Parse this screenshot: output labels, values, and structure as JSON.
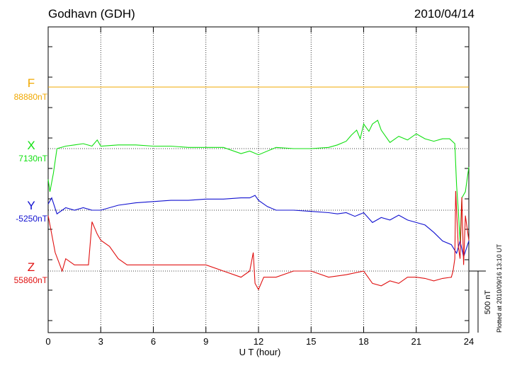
{
  "header": {
    "station": "Godhavn (GDH)",
    "date": "2010/04/14"
  },
  "footer": {
    "plotted": "Plotted at 2010/09/16 13:10 UT"
  },
  "scale_bar": {
    "label": "500 nT",
    "value_nT": 500
  },
  "colors": {
    "F": "#f0a800",
    "X": "#10e010",
    "Y": "#1010d0",
    "Z": "#e01010"
  },
  "chart_data": {
    "type": "line",
    "title": "Godhavn (GDH)",
    "xlabel": "U T (hour)",
    "ylabel": "",
    "xlim": [
      0,
      24
    ],
    "x_ticks": [
      0,
      3,
      6,
      9,
      12,
      15,
      18,
      21,
      24
    ],
    "x_tick_labels": [
      "0",
      "3",
      "6",
      "9",
      "12",
      "15",
      "18",
      "21",
      "24"
    ],
    "grid": true,
    "units": "nT (deviation from component baseline)",
    "series": [
      {
        "name": "F",
        "baseline_label": "88880nT",
        "color": "#f0a800",
        "x": [
          0,
          24
        ],
        "values": [
          0,
          0
        ]
      },
      {
        "name": "X",
        "baseline_label": "7130nT",
        "color": "#10e010",
        "x": [
          0,
          0.1,
          0.3,
          0.5,
          1.0,
          1.5,
          2.0,
          2.5,
          2.8,
          3.0,
          4.0,
          5.0,
          6.0,
          7.0,
          8.0,
          9.0,
          10.0,
          11.0,
          11.5,
          12.0,
          13.0,
          14.0,
          15.0,
          16.0,
          16.5,
          17.0,
          17.3,
          17.6,
          17.8,
          18.0,
          18.3,
          18.5,
          18.8,
          19.0,
          19.5,
          20.0,
          20.5,
          21.0,
          21.5,
          22.0,
          22.5,
          22.9,
          23.2,
          23.3,
          23.4,
          23.5,
          23.6,
          23.8,
          24.0
        ],
        "values": [
          -250,
          -350,
          -200,
          0,
          20,
          30,
          40,
          20,
          70,
          20,
          30,
          30,
          20,
          20,
          10,
          10,
          10,
          -40,
          -20,
          -50,
          10,
          0,
          0,
          10,
          30,
          60,
          110,
          150,
          80,
          200,
          140,
          200,
          230,
          150,
          50,
          100,
          70,
          120,
          80,
          60,
          80,
          80,
          40,
          -300,
          -500,
          -750,
          -400,
          -350,
          -150
        ]
      },
      {
        "name": "Y",
        "baseline_label": "-5250nT",
        "color": "#1010d0",
        "x": [
          0,
          0.2,
          0.5,
          1.0,
          1.5,
          2.0,
          2.5,
          3.0,
          4.0,
          5.0,
          6.0,
          7.0,
          8.0,
          9.0,
          10.0,
          11.0,
          11.5,
          11.8,
          12.0,
          12.5,
          13.0,
          14.0,
          15.0,
          16.0,
          16.5,
          17.0,
          17.5,
          18.0,
          18.5,
          19.0,
          19.5,
          20.0,
          20.5,
          21.0,
          21.5,
          22.0,
          22.5,
          23.0,
          23.3,
          23.5,
          23.7,
          24.0
        ],
        "values": [
          50,
          100,
          -30,
          20,
          0,
          20,
          0,
          0,
          40,
          60,
          70,
          80,
          80,
          90,
          90,
          100,
          100,
          120,
          80,
          30,
          0,
          0,
          -10,
          -20,
          -30,
          -20,
          -50,
          -20,
          -100,
          -60,
          -80,
          -40,
          -80,
          -100,
          -120,
          -180,
          -250,
          -280,
          -350,
          -250,
          -380,
          -250
        ]
      },
      {
        "name": "Z",
        "baseline_label": "55860nT",
        "color": "#e01010",
        "x": [
          0,
          0.2,
          0.4,
          0.8,
          1.0,
          1.5,
          2.0,
          2.3,
          2.5,
          2.8,
          3.0,
          3.5,
          4.0,
          4.5,
          5.0,
          6.0,
          7.0,
          8.0,
          9.0,
          10.0,
          11.0,
          11.5,
          11.7,
          11.8,
          12.0,
          12.3,
          13.0,
          14.0,
          15.0,
          16.0,
          17.0,
          18.0,
          18.5,
          19.0,
          19.5,
          20.0,
          20.5,
          21.0,
          21.5,
          22.0,
          22.5,
          23.0,
          23.1,
          23.2,
          23.25,
          23.4,
          23.5,
          23.6,
          23.7,
          23.8,
          24.0
        ],
        "values": [
          450,
          300,
          150,
          0,
          100,
          50,
          50,
          50,
          400,
          300,
          250,
          200,
          100,
          50,
          50,
          50,
          50,
          50,
          50,
          0,
          -50,
          0,
          150,
          -100,
          -150,
          -50,
          -50,
          0,
          0,
          -50,
          -30,
          0,
          -100,
          -120,
          -80,
          -100,
          -50,
          -50,
          -60,
          -80,
          -60,
          -50,
          0,
          100,
          650,
          200,
          100,
          600,
          50,
          450,
          250
        ]
      }
    ]
  }
}
